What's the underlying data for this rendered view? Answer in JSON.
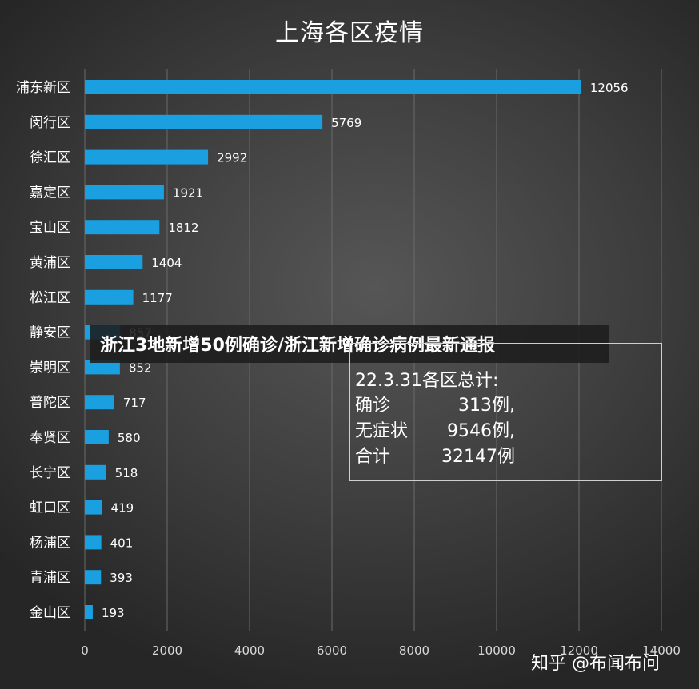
{
  "chart_data": {
    "type": "bar",
    "orientation": "horizontal",
    "title": "上海各区疫情",
    "categories": [
      "浦东新区",
      "闵行区",
      "徐汇区",
      "嘉定区",
      "宝山区",
      "黄浦区",
      "松江区",
      "静安区",
      "崇明区",
      "普陀区",
      "奉贤区",
      "长宁区",
      "虹口区",
      "杨浦区",
      "青浦区",
      "金山区"
    ],
    "values": [
      12056,
      5769,
      2992,
      1921,
      1812,
      1404,
      1177,
      857,
      852,
      717,
      580,
      518,
      419,
      401,
      393,
      193
    ],
    "data_labels": [
      "12056",
      "5769",
      "2992",
      "1921",
      "1812",
      "1404",
      "1177",
      "857",
      "852",
      "717",
      "580",
      "518",
      "419",
      "401",
      "393",
      "193"
    ],
    "xlim": [
      0,
      14000
    ],
    "xticks": [
      0,
      2000,
      4000,
      6000,
      8000,
      10000,
      12000,
      14000
    ],
    "xtick_labels": [
      "0",
      "2000",
      "4000",
      "6000",
      "8000",
      "10000",
      "12000",
      "14000"
    ],
    "grid": true,
    "colors": {
      "bar": "#1a9fe0",
      "text": "#ffffff",
      "tick_label": "#d9d9d9",
      "gridline": "#6a6a6a"
    }
  },
  "overlay_banner": {
    "text": "浙江3地新增50例确诊/浙江新增确诊病例最新通报"
  },
  "summary_box": {
    "heading": "22.3.31各区总计:",
    "rows": [
      {
        "label": "确诊",
        "value": "313例,"
      },
      {
        "label": "无症状",
        "value": "9546例,"
      },
      {
        "label": "合计",
        "value": "32147例"
      }
    ]
  },
  "watermark": "知乎 @布闻布问"
}
